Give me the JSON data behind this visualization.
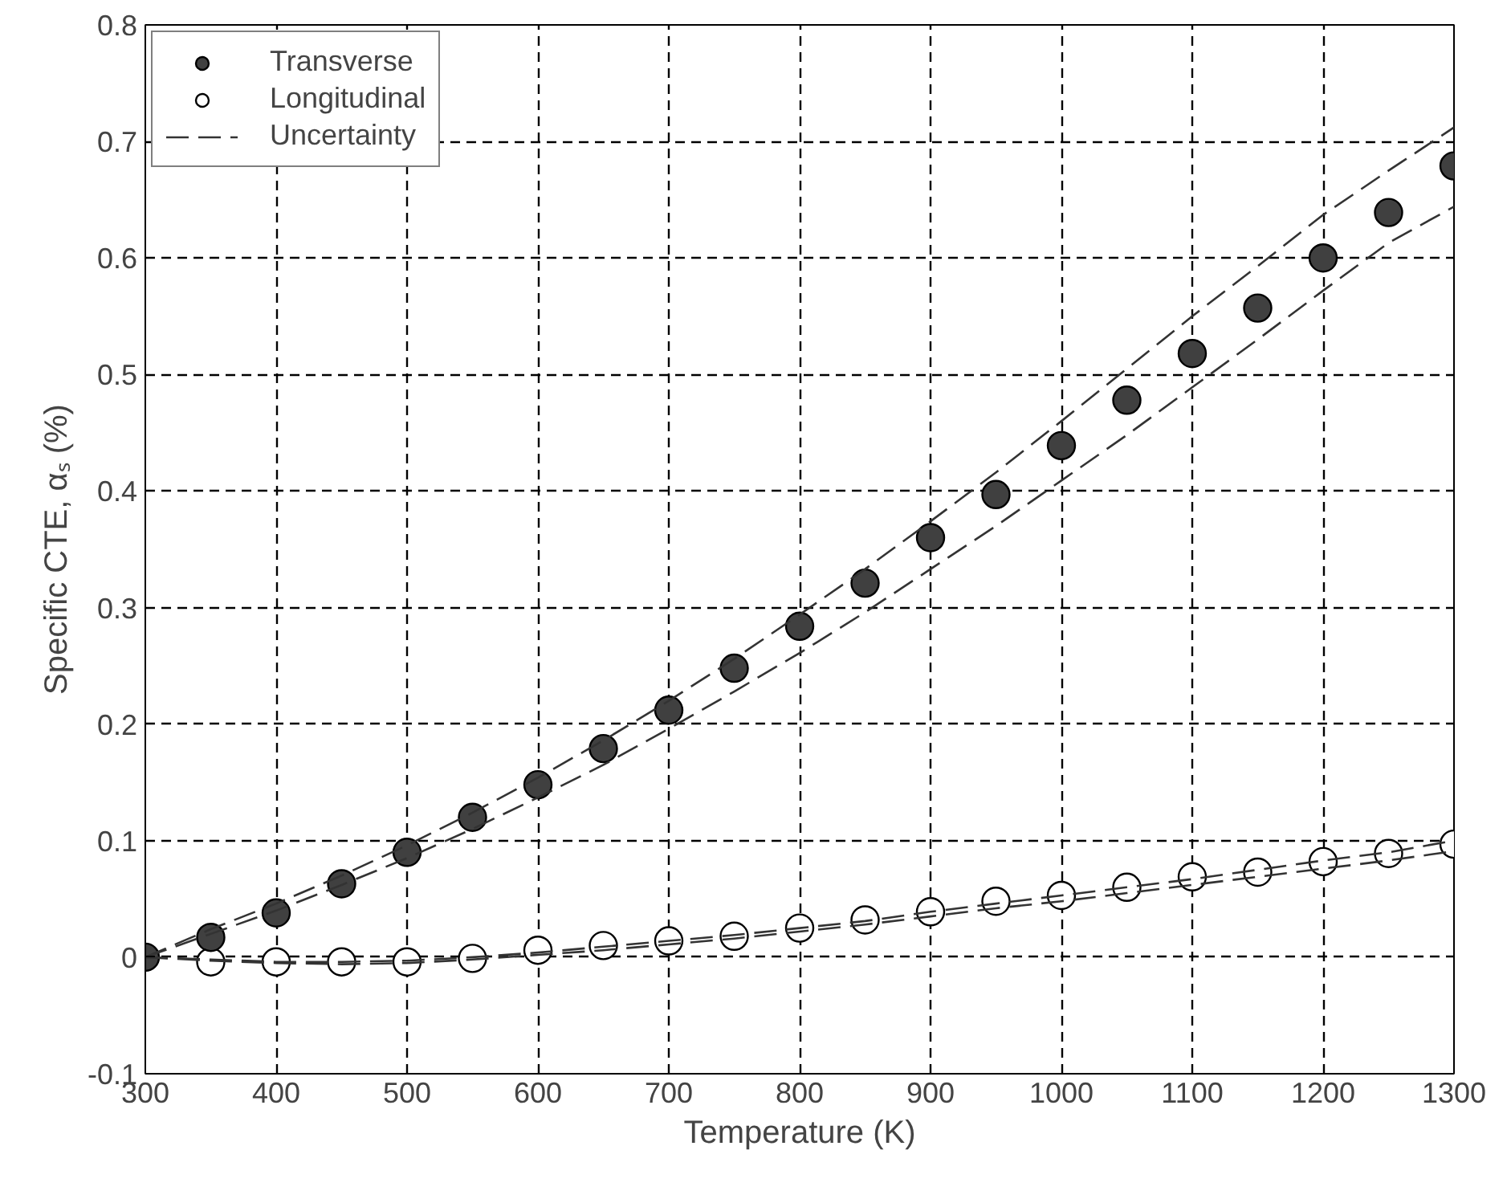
{
  "chart_data": {
    "type": "scatter",
    "xlabel": "Temperature (K)",
    "ylabel": "Specific CTE, αₛ (%)",
    "x": [
      300,
      350,
      400,
      450,
      500,
      550,
      600,
      650,
      700,
      750,
      800,
      850,
      900,
      950,
      1000,
      1050,
      1100,
      1150,
      1200,
      1250,
      1300
    ],
    "series": [
      {
        "name": "Transverse",
        "color": "#404040",
        "marker": "circle",
        "values": [
          0,
          0.017,
          0.038,
          0.063,
          0.09,
          0.12,
          0.148,
          0.179,
          0.212,
          0.248,
          0.284,
          0.321,
          0.36,
          0.397,
          0.439,
          0.478,
          0.518,
          0.557,
          0.6,
          0.639,
          0.679
        ]
      },
      {
        "name": "Longitudinal",
        "color": "#ffffff",
        "marker": "circle",
        "values": [
          null,
          -0.004,
          -0.004,
          -0.004,
          -0.004,
          -0.001,
          0.006,
          0.01,
          0.014,
          0.018,
          0.025,
          0.032,
          0.039,
          0.048,
          0.053,
          0.06,
          0.069,
          0.073,
          0.082,
          0.089,
          0.097
        ]
      },
      {
        "name": "Uncertainty",
        "type": "line",
        "color": "#333333",
        "line_style": "dashed",
        "values": [
          0,
          0.024,
          0.046,
          0.07,
          0.096,
          0.124,
          0.154,
          0.186,
          0.22,
          0.256,
          0.294,
          0.333,
          0.374,
          0.416,
          0.46,
          0.505,
          0.55,
          0.593,
          0.637,
          0.675,
          0.712
        ]
      },
      {
        "type": "line",
        "color": "#333333",
        "line_style": "dashed",
        "values": [
          0,
          0.02,
          0.04,
          0.062,
          0.085,
          0.11,
          0.137,
          0.165,
          0.196,
          0.228,
          0.261,
          0.296,
          0.333,
          0.37,
          0.409,
          0.448,
          0.489,
          0.53,
          0.572,
          0.613,
          0.644
        ]
      },
      {
        "type": "line",
        "color": "#333333",
        "line_style": "dashed",
        "values": [
          0,
          -0.002,
          -0.004,
          -0.004,
          -0.003,
          0.0,
          0.004,
          0.009,
          0.014,
          0.019,
          0.025,
          0.031,
          0.039,
          0.046,
          0.053,
          0.06,
          0.067,
          0.075,
          0.083,
          0.09,
          0.1
        ]
      },
      {
        "type": "line",
        "color": "#333333",
        "line_style": "dashed",
        "values": [
          0,
          -0.003,
          -0.005,
          -0.006,
          -0.005,
          -0.002,
          0.002,
          0.006,
          0.011,
          0.016,
          0.022,
          0.028,
          0.035,
          0.042,
          0.048,
          0.055,
          0.062,
          0.069,
          0.076,
          0.083,
          0.091
        ]
      }
    ],
    "xlim": [
      300,
      1300
    ],
    "xticks": [
      300,
      400,
      500,
      600,
      700,
      800,
      900,
      1000,
      1100,
      1200,
      1300
    ],
    "ylim": [
      -0.1,
      0.8
    ],
    "yticks": [
      -0.1,
      0,
      0.1,
      0.2,
      0.3,
      0.4,
      0.5,
      0.6,
      0.7,
      0.8
    ],
    "grid": true,
    "legend": "top left"
  }
}
